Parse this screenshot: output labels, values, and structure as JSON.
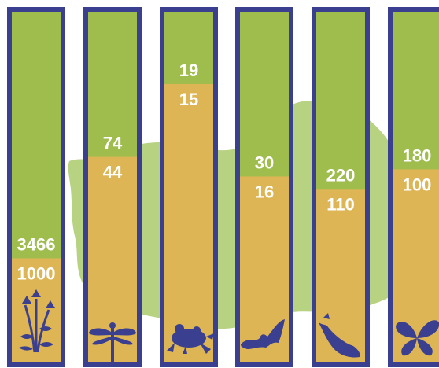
{
  "chart_data": {
    "type": "bar",
    "categories": [
      "plants",
      "dragonflies",
      "amphibians",
      "bats",
      "birds",
      "butterflies"
    ],
    "series": [
      {
        "values": [
          3466,
          74,
          19,
          30,
          220,
          180
        ]
      },
      {
        "values": [
          1000,
          44,
          15,
          16,
          110,
          100
        ]
      }
    ],
    "value_labels_top": [
      "3466",
      "74",
      "19",
      "30",
      "220",
      "180"
    ],
    "value_labels_bottom": [
      "1000",
      "44",
      "15",
      "16",
      "110",
      "100"
    ],
    "fill_fraction": [
      0.3,
      0.585,
      0.79,
      0.53,
      0.495,
      0.55
    ],
    "icons": [
      "plant-icon",
      "dragonfly-icon",
      "frog-icon",
      "bat-icon",
      "bird-icon",
      "butterfly-icon"
    ],
    "colors": {
      "frame": "#3a3f8f",
      "top_fill": "#9fbd4d",
      "bottom_fill": "#ddb555",
      "icon": "#3a3f8f",
      "label": "#ffffff",
      "map_shape": "#8fb83a"
    }
  }
}
